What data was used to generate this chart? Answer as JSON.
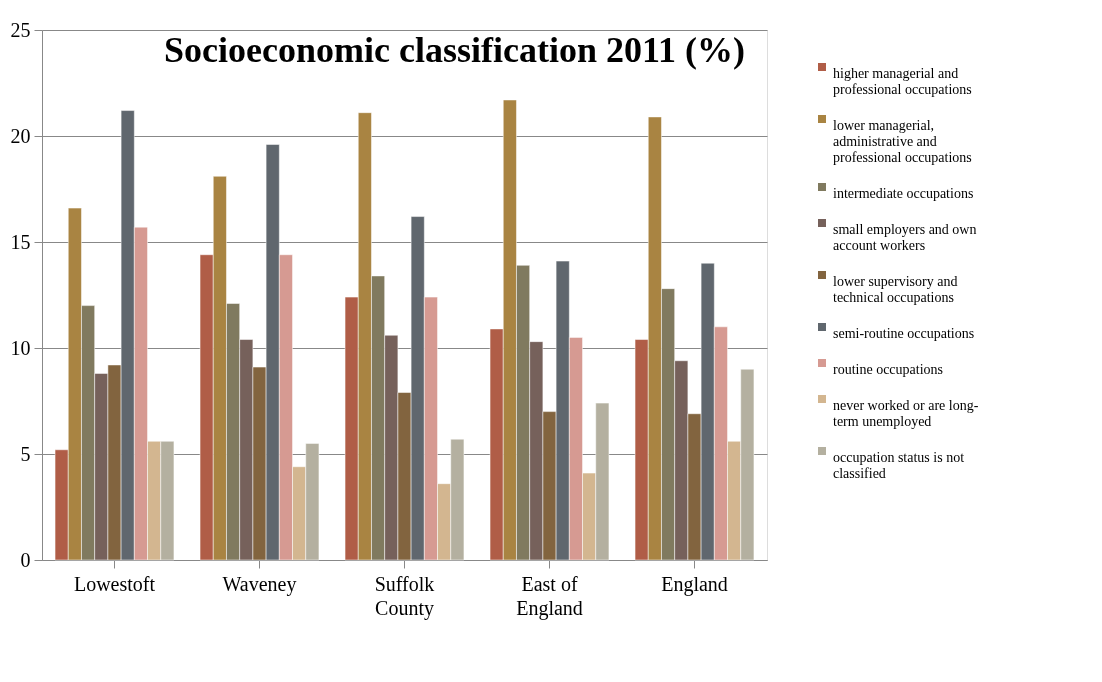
{
  "chart_data": {
    "type": "bar",
    "title": "Socioeconomic classification 2011 (%)",
    "categories": [
      "Lowestoft",
      "Waveney",
      "Suffolk County",
      "East of England",
      "England"
    ],
    "series": [
      {
        "name": "higher managerial and professional occupations",
        "color": "#b05d47",
        "values": [
          5.2,
          14.4,
          12.4,
          10.9,
          10.4
        ]
      },
      {
        "name": "lower managerial, administrative and professional occupations",
        "color": "#a98442",
        "values": [
          16.6,
          18.1,
          21.1,
          21.7,
          20.9
        ]
      },
      {
        "name": "intermediate occupations",
        "color": "#807a5f",
        "values": [
          12.0,
          12.1,
          13.4,
          13.9,
          12.8
        ]
      },
      {
        "name": "small employers and own account workers",
        "color": "#76615b",
        "values": [
          8.8,
          10.4,
          10.6,
          10.3,
          9.4
        ]
      },
      {
        "name": "lower supervisory and technical occupations",
        "color": "#82643f",
        "values": [
          9.2,
          9.1,
          7.9,
          7.0,
          6.9
        ]
      },
      {
        "name": "semi-routine occupations",
        "color": "#60676e",
        "values": [
          21.2,
          19.6,
          16.2,
          14.1,
          14.0
        ]
      },
      {
        "name": "routine occupations",
        "color": "#d69a92",
        "values": [
          15.7,
          14.4,
          12.4,
          10.5,
          11.0
        ]
      },
      {
        "name": "never worked or are long-term unemployed",
        "color": "#d3b690",
        "values": [
          5.6,
          4.4,
          3.6,
          4.1,
          5.6
        ]
      },
      {
        "name": "occupation status is not classified",
        "color": "#b4b0a0",
        "values": [
          5.6,
          5.5,
          5.7,
          7.4,
          9.0
        ]
      }
    ],
    "ylim": [
      0,
      25
    ],
    "yticks": [
      0,
      5,
      10,
      15,
      20,
      25
    ],
    "grid": "y",
    "legend": "right"
  }
}
